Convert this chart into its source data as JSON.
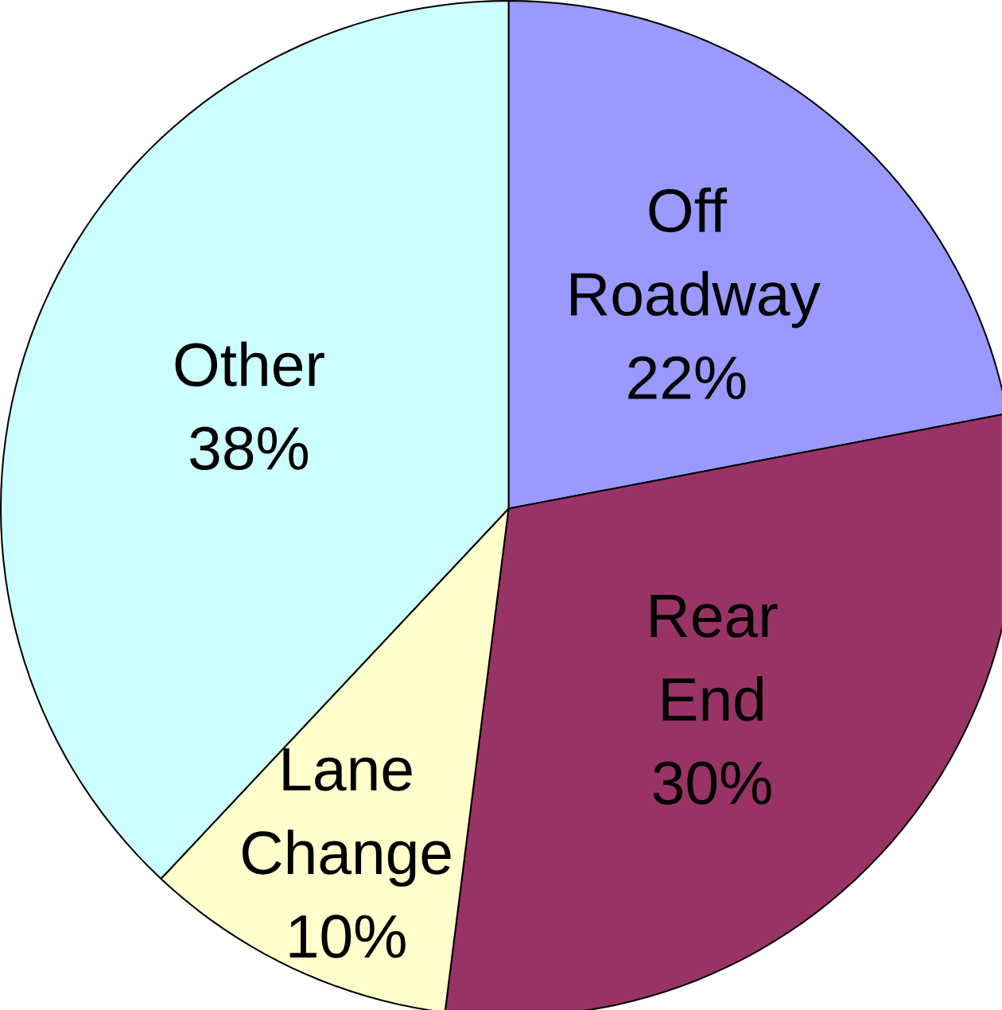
{
  "chart_data": {
    "type": "pie",
    "categories": [
      "Off Roadway",
      "Rear End",
      "Lane Change",
      "Other"
    ],
    "values": [
      22,
      30,
      10,
      38
    ],
    "value_labels": [
      "22%",
      "30%",
      "10%",
      "38%"
    ],
    "colors": [
      "#9999ff",
      "#993366",
      "#ffffcc",
      "#ccffff"
    ]
  }
}
